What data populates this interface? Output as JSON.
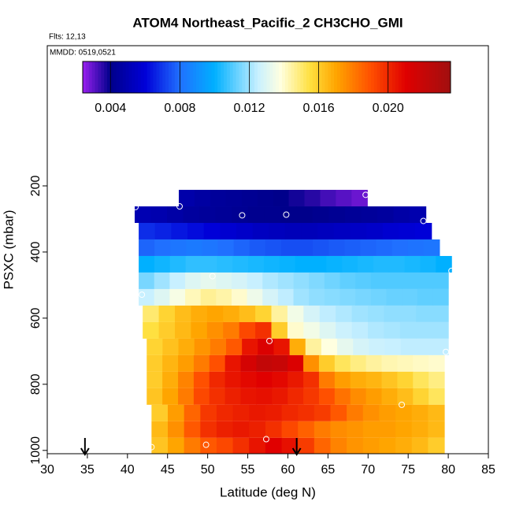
{
  "chart_data": {
    "type": "heatmap",
    "title": "ATOM4 Northeast_Pacific_2 CH3CHO_GMI",
    "subtitle": "Flts: 12,13",
    "annotation": "MMDD: 0519,0521",
    "xlabel": "Latitude (deg N)",
    "ylabel": "PSXC (mbar)",
    "xlim": [
      30,
      85
    ],
    "xticks": [
      30,
      35,
      40,
      45,
      50,
      55,
      60,
      65,
      70,
      75,
      80,
      85
    ],
    "ylim": [
      1010,
      -224
    ],
    "yticks": [
      200,
      400,
      600,
      800,
      1000
    ],
    "clim": [
      0.0024,
      0.0236
    ],
    "cticks": [
      0.004,
      0.008,
      0.012,
      0.016,
      {
        "value": 0.02,
        "label": "0.020"
      }
    ],
    "colorscale": [
      [
        0.0024,
        "#9a20f0"
      ],
      [
        0.004,
        "#00008b"
      ],
      [
        0.006,
        "#0000d8"
      ],
      [
        0.008,
        "#2070ff"
      ],
      [
        0.01,
        "#00b0ff"
      ],
      [
        0.0125,
        "#c8f0ff"
      ],
      [
        0.0138,
        "#ffffe0"
      ],
      [
        0.0155,
        "#ffe040"
      ],
      [
        0.017,
        "#ffa500"
      ],
      [
        0.019,
        "#ff5000"
      ],
      [
        0.021,
        "#e00000"
      ],
      [
        0.0236,
        "#a01010"
      ]
    ],
    "rows": [
      {
        "p_range": [
          212,
          262
        ],
        "lat_range": [
          46.4,
          69.9
        ],
        "values": [
          0.0048,
          0.0046,
          0.0044,
          0.0043,
          0.0042,
          0.0041,
          0.004,
          0.0038,
          0.0036,
          0.0033,
          0.0031,
          0.0029
        ]
      },
      {
        "p_range": [
          262,
          312
        ],
        "lat_range": [
          40.9,
          77.2
        ],
        "values": [
          0.005,
          0.0049,
          0.0047,
          0.0045,
          0.0044,
          0.0043,
          0.0042,
          0.0041,
          0.0041,
          0.004,
          0.004,
          0.0041,
          0.0042,
          0.0043,
          0.0044,
          0.0045,
          0.0047,
          0.0049
        ]
      },
      {
        "p_range": [
          312,
          362
        ],
        "lat_range": [
          41.4,
          77.9
        ],
        "values": [
          0.0068,
          0.0066,
          0.0064,
          0.0062,
          0.006,
          0.0058,
          0.0056,
          0.0054,
          0.0053,
          0.0052,
          0.0052,
          0.0053,
          0.0054,
          0.0055,
          0.0056,
          0.0058,
          0.0059,
          0.006
        ]
      },
      {
        "p_range": [
          362,
          412
        ],
        "lat_range": [
          41.4,
          78.9
        ],
        "values": [
          0.0078,
          0.008,
          0.0082,
          0.0083,
          0.0082,
          0.008,
          0.0078,
          0.0076,
          0.0075,
          0.0074,
          0.0074,
          0.0075,
          0.0076,
          0.0077,
          0.0078,
          0.0079,
          0.008,
          0.0081,
          0.0082
        ]
      },
      {
        "p_range": [
          412,
          462
        ],
        "lat_range": [
          41.4,
          80.4
        ],
        "values": [
          0.01,
          0.0102,
          0.0104,
          0.0106,
          0.0106,
          0.0105,
          0.0104,
          0.0103,
          0.0102,
          0.0101,
          0.01,
          0.01,
          0.0101,
          0.0102,
          0.0103,
          0.0104,
          0.0104,
          0.0103,
          0.0102,
          0.01
        ]
      },
      {
        "p_range": [
          462,
          512
        ],
        "lat_range": [
          41.4,
          80.0
        ],
        "values": [
          0.0115,
          0.012,
          0.0125,
          0.013,
          0.0132,
          0.013,
          0.0128,
          0.0125,
          0.0122,
          0.012,
          0.0118,
          0.0116,
          0.0114,
          0.0112,
          0.0111,
          0.011,
          0.011,
          0.011,
          0.011,
          0.011
        ]
      },
      {
        "p_range": [
          512,
          562
        ],
        "lat_range": [
          41.4,
          80.0
        ],
        "values": [
          0.0125,
          0.013,
          0.0136,
          0.0142,
          0.0146,
          0.0144,
          0.014,
          0.0134,
          0.0128,
          0.0124,
          0.012,
          0.0118,
          0.0117,
          0.0116,
          0.0115,
          0.0114,
          0.0113,
          0.0113,
          0.0112,
          0.0112
        ]
      },
      {
        "p_range": [
          562,
          612
        ],
        "lat_range": [
          41.9,
          80.0
        ],
        "values": [
          0.015,
          0.0158,
          0.0164,
          0.0168,
          0.017,
          0.0168,
          0.0164,
          0.0158,
          0.0145,
          0.0135,
          0.0128,
          0.0124,
          0.0122,
          0.012,
          0.0119,
          0.0118,
          0.0118,
          0.0117,
          0.0117
        ]
      },
      {
        "p_range": [
          612,
          662
        ],
        "lat_range": [
          41.9,
          80.0
        ],
        "values": [
          0.0155,
          0.016,
          0.0165,
          0.017,
          0.0175,
          0.018,
          0.0192,
          0.0198,
          0.016,
          0.014,
          0.0135,
          0.013,
          0.0126,
          0.0124,
          0.0122,
          0.0121,
          0.012,
          0.012,
          0.012
        ]
      },
      {
        "p_range": [
          662,
          712
        ],
        "lat_range": [
          42.4,
          80.0
        ],
        "values": [
          0.0158,
          0.0163,
          0.0168,
          0.0174,
          0.018,
          0.0188,
          0.0205,
          0.0212,
          0.0205,
          0.0168,
          0.0145,
          0.0138,
          0.0132,
          0.0128,
          0.0126,
          0.0125,
          0.0124,
          0.0124,
          0.0124
        ]
      },
      {
        "p_range": [
          712,
          762
        ],
        "lat_range": [
          42.4,
          79.5
        ],
        "values": [
          0.016,
          0.0166,
          0.0172,
          0.018,
          0.019,
          0.0205,
          0.0215,
          0.0222,
          0.022,
          0.0212,
          0.0175,
          0.016,
          0.0152,
          0.0148,
          0.0145,
          0.0143,
          0.0142,
          0.0141,
          0.014
        ]
      },
      {
        "p_range": [
          762,
          812
        ],
        "lat_range": [
          42.4,
          79.5
        ],
        "values": [
          0.016,
          0.0168,
          0.0178,
          0.019,
          0.02,
          0.0205,
          0.0208,
          0.021,
          0.0208,
          0.0204,
          0.0198,
          0.018,
          0.0172,
          0.0168,
          0.0166,
          0.0162,
          0.0158,
          0.0152,
          0.0148
        ]
      },
      {
        "p_range": [
          812,
          862
        ],
        "lat_range": [
          42.4,
          79.5
        ],
        "values": [
          0.0162,
          0.017,
          0.018,
          0.0192,
          0.0198,
          0.0202,
          0.0205,
          0.0206,
          0.0204,
          0.02,
          0.0196,
          0.019,
          0.0182,
          0.0176,
          0.0172,
          0.0168,
          0.0164,
          0.0158,
          0.0152
        ]
      },
      {
        "p_range": [
          862,
          912
        ],
        "lat_range": [
          43.0,
          79.5
        ],
        "values": [
          0.016,
          0.0172,
          0.0185,
          0.0196,
          0.02,
          0.0202,
          0.0204,
          0.0203,
          0.02,
          0.0198,
          0.0195,
          0.0188,
          0.018,
          0.0175,
          0.0172,
          0.017,
          0.0168,
          0.0165
        ]
      },
      {
        "p_range": [
          912,
          962
        ],
        "lat_range": [
          43.0,
          79.5
        ],
        "values": [
          0.0165,
          0.0175,
          0.0188,
          0.0198,
          0.0202,
          0.0204,
          0.0202,
          0.0198,
          0.0192,
          0.0186,
          0.018,
          0.0176,
          0.0174,
          0.0172,
          0.0172,
          0.017,
          0.0168,
          0.0165
        ]
      },
      {
        "p_range": [
          962,
          1010
        ],
        "lat_range": [
          43.0,
          79.5
        ],
        "values": [
          0.0162,
          0.017,
          0.018,
          0.0188,
          0.0192,
          0.0198,
          0.0205,
          0.021,
          0.0206,
          0.0195,
          0.0185,
          0.0178,
          0.0174,
          0.0172,
          0.017,
          0.0168,
          0.0165,
          0.016
        ]
      }
    ],
    "points": {
      "lat": [
        69.7,
        46.5,
        54.3,
        59.8,
        76.9,
        41.0,
        80.4,
        50.6,
        41.8,
        57.7,
        79.7,
        74.2,
        57.3,
        49.8,
        43.0
      ],
      "pressure": [
        227,
        262,
        289,
        287,
        306,
        264,
        457,
        473,
        529,
        669,
        702,
        862,
        966,
        983,
        990
      ]
    },
    "markers": [
      34.7,
      61.1
    ]
  }
}
